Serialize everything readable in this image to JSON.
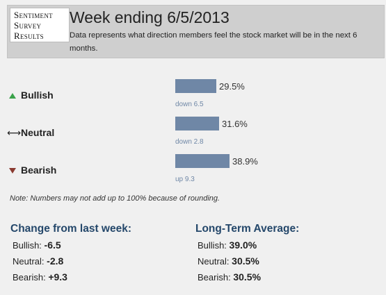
{
  "logo": {
    "line1": "Sentiment",
    "line2": "Survey",
    "line3": "Results"
  },
  "header": {
    "title": "Week ending 6/5/2013",
    "description": "Data represents what direction members feel the stock market will be in the next 6 months."
  },
  "sentiment": [
    {
      "label": "Bullish",
      "icon": "up-triangle-icon",
      "value": 29.5,
      "percent": "29.5%",
      "change": "down 6.5",
      "color": "#3aa24a"
    },
    {
      "label": "Neutral",
      "icon": "left-right-arrow-icon",
      "value": 31.6,
      "percent": "31.6%",
      "change": "down 2.8",
      "color": "#222222"
    },
    {
      "label": "Bearish",
      "icon": "down-triangle-icon",
      "value": 38.9,
      "percent": "38.9%",
      "change": "up 9.3",
      "color": "#8a3a30"
    }
  ],
  "note": "Note: Numbers may not add up to 100% because of rounding.",
  "change_from_last_week": {
    "title": "Change from last week:",
    "items": [
      {
        "label": "Bullish:",
        "value": "-6.5"
      },
      {
        "label": "Neutral:",
        "value": "-2.8"
      },
      {
        "label": "Bearish:",
        "value": "+9.3"
      }
    ]
  },
  "long_term_average": {
    "title": "Long-Term Average:",
    "items": [
      {
        "label": "Bullish:",
        "value": "39.0%"
      },
      {
        "label": "Neutral:",
        "value": "30.5%"
      },
      {
        "label": "Bearish:",
        "value": "30.5%"
      }
    ]
  },
  "colors": {
    "bar": "#6f87a6",
    "section_title": "#24476a",
    "header_bg": "#cfcfcf"
  }
}
